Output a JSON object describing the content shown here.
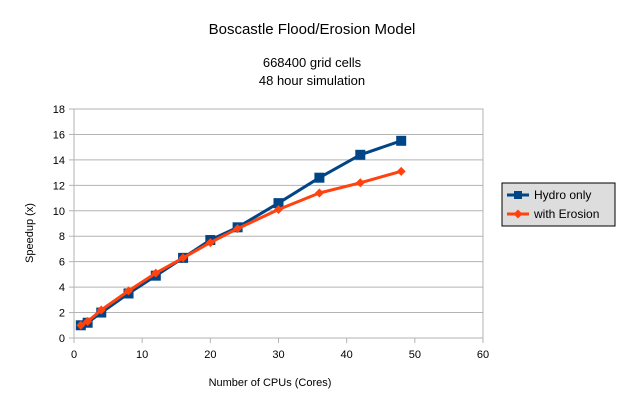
{
  "chart_data": {
    "type": "line",
    "title": "Boscastle Flood/Erosion Model",
    "subtitle_lines": [
      "668400 grid cells",
      "48 hour simulation"
    ],
    "xlabel": "Number of CPUs (Cores)",
    "ylabel": "Speedup (x)",
    "xlim": [
      0,
      60
    ],
    "ylim": [
      0,
      18
    ],
    "x_ticks": [
      0,
      10,
      20,
      30,
      40,
      50,
      60
    ],
    "y_ticks": [
      0,
      2,
      4,
      6,
      8,
      10,
      12,
      14,
      16,
      18
    ],
    "grid": {
      "horizontal": true,
      "vertical": false
    },
    "legend": {
      "placement": "right"
    },
    "series": [
      {
        "name": "Hydro only",
        "color": "#004586",
        "marker": "square",
        "x": [
          1,
          2,
          4,
          8,
          12,
          16,
          20,
          24,
          30,
          36,
          42,
          48
        ],
        "y": [
          1.0,
          1.2,
          2.0,
          3.5,
          4.9,
          6.3,
          7.7,
          8.7,
          10.6,
          12.6,
          14.4,
          15.5
        ]
      },
      {
        "name": "with Erosion",
        "color": "#ff420e",
        "marker": "diamond",
        "x": [
          1,
          2,
          4,
          8,
          12,
          16,
          20,
          24,
          30,
          36,
          42,
          48
        ],
        "y": [
          1.0,
          1.3,
          2.2,
          3.7,
          5.1,
          6.3,
          7.5,
          8.6,
          10.1,
          11.4,
          12.2,
          13.1
        ]
      }
    ]
  }
}
